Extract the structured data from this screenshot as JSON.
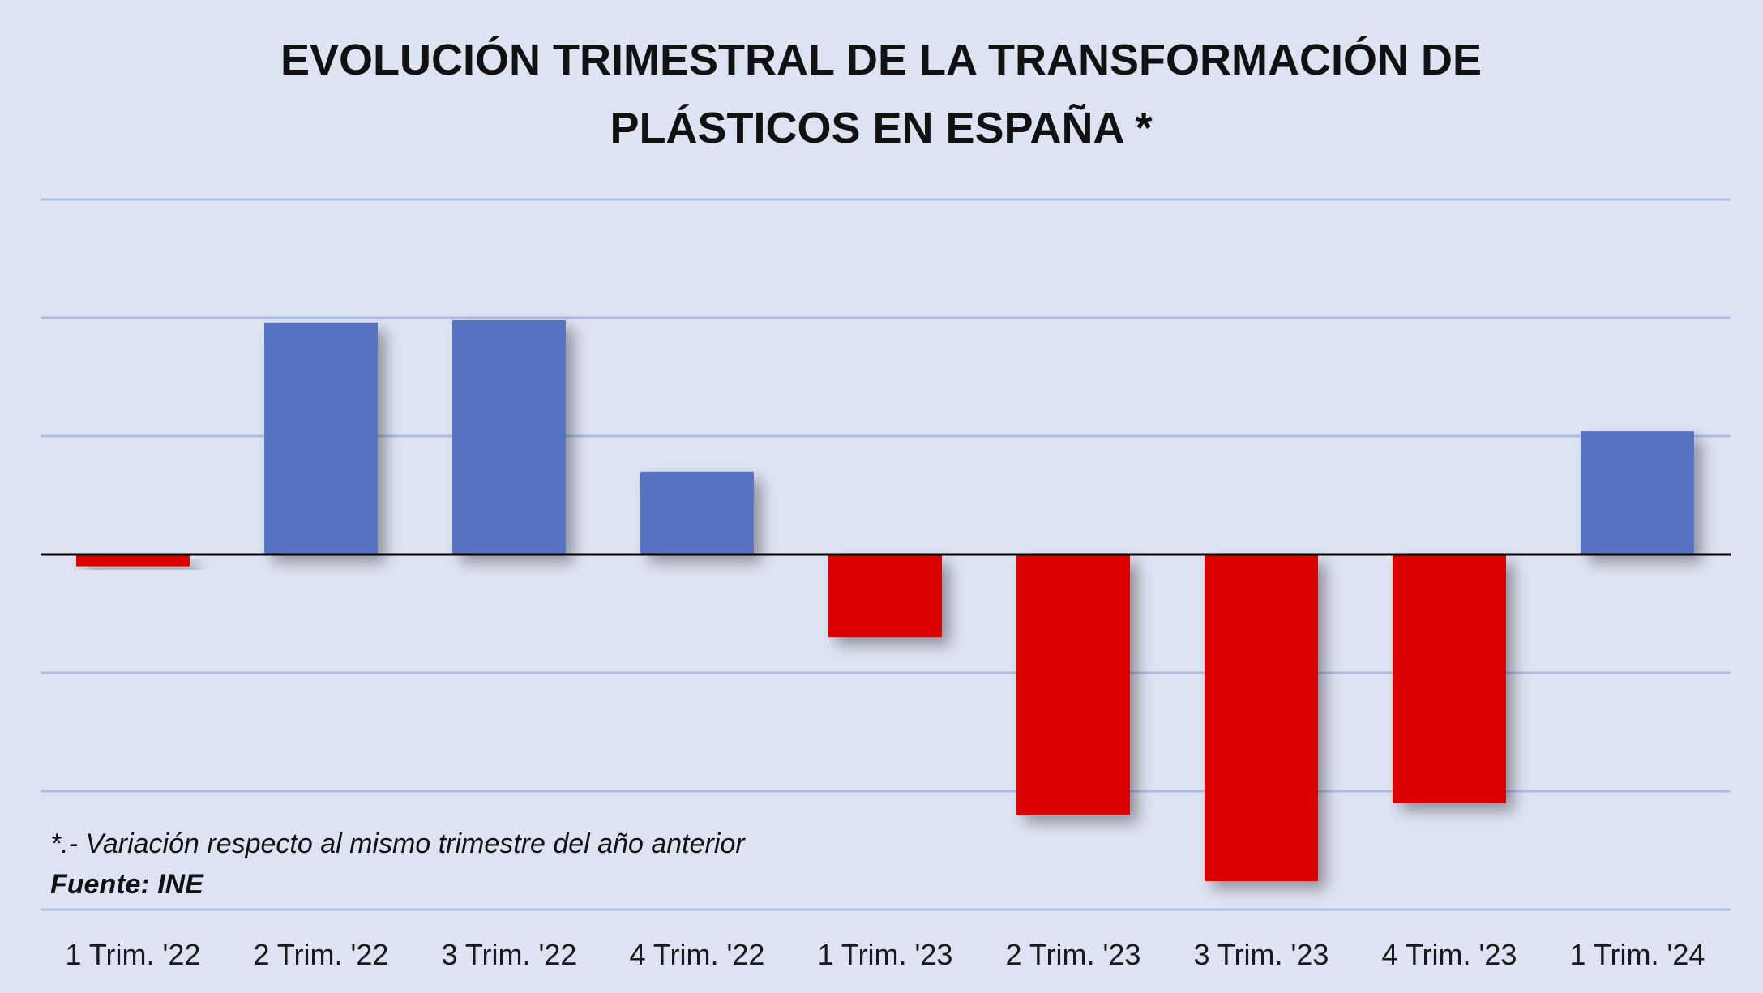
{
  "chart_data": {
    "type": "bar",
    "title_lines": [
      "EVOLUCIÓN TRIMESTRAL DE LA TRANSFORMACIÓN DE",
      "PLÁSTICOS EN ESPAÑA *"
    ],
    "categories": [
      "1 Trim. '22",
      "2 Trim. '22",
      "3 Trim. '22",
      "4 Trim. '22",
      "1 Trim. '23",
      "2 Trim. '23",
      "3 Trim. '23",
      "4 Trim. '23",
      "1 Trim. '24"
    ],
    "values": [
      -0.5,
      9.8,
      9.9,
      3.5,
      -3.5,
      -11.0,
      -13.8,
      -10.5,
      5.2
    ],
    "ylim": [
      -15,
      15
    ],
    "gridlines": [
      -15,
      -10,
      -5,
      5,
      10,
      15
    ],
    "grid": true,
    "positive_color": "#5673c4",
    "negative_color": "#dd0000",
    "grid_color": "#aebde6",
    "zero_line_color": "#000000",
    "note": "*.- Variación respecto al mismo trimestre  del año anterior",
    "source": "Fuente: INE"
  }
}
